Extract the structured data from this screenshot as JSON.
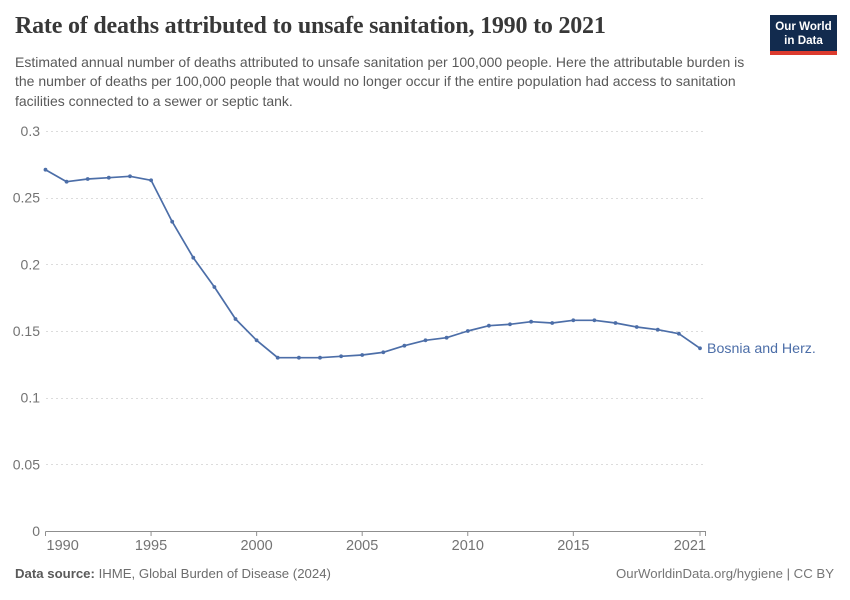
{
  "header": {
    "title": "Rate of deaths attributed to unsafe sanitation, 1990 to 2021",
    "subtitle": "Estimated annual number of deaths attributed to unsafe sanitation per 100,000 people. Here the attributable burden is the number of deaths per 100,000 people that would no longer occur if the entire population had access to sanitation facilities connected to a sewer or septic tank.",
    "logo": {
      "line1": "Our World",
      "line2": "in Data"
    }
  },
  "chart_data": {
    "type": "line",
    "title": "Rate of deaths attributed to unsafe sanitation, 1990 to 2021",
    "x": [
      1990,
      1991,
      1992,
      1993,
      1994,
      1995,
      1996,
      1997,
      1998,
      1999,
      2000,
      2001,
      2002,
      2003,
      2004,
      2005,
      2006,
      2007,
      2008,
      2009,
      2010,
      2011,
      2012,
      2013,
      2014,
      2015,
      2016,
      2017,
      2018,
      2019,
      2020,
      2021
    ],
    "series": [
      {
        "name": "Bosnia and Herz.",
        "values": [
          0.271,
          0.262,
          0.264,
          0.265,
          0.266,
          0.263,
          0.232,
          0.205,
          0.183,
          0.159,
          0.143,
          0.13,
          0.13,
          0.13,
          0.131,
          0.132,
          0.134,
          0.139,
          0.143,
          0.145,
          0.15,
          0.154,
          0.155,
          0.157,
          0.156,
          0.158,
          0.158,
          0.156,
          0.153,
          0.151,
          0.148,
          0.137
        ],
        "color": "#4c6ea8"
      }
    ],
    "xlabel": "",
    "ylabel": "",
    "xlim": [
      1990,
      2021
    ],
    "ylim": [
      0,
      0.3
    ],
    "x_ticks": [
      1990,
      1995,
      2000,
      2005,
      2010,
      2015,
      2021
    ],
    "y_ticks": [
      0,
      0.05,
      0.1,
      0.15,
      0.2,
      0.25,
      0.3
    ],
    "y_tick_labels": [
      "0",
      "0.05",
      "0.1",
      "0.15",
      "0.2",
      "0.25",
      "0.3"
    ],
    "grid": "horizontal-dashed",
    "legend_position": "end-of-line-label",
    "end_label": "Bosnia and Herz."
  },
  "footer": {
    "datasource_label": "Data source:",
    "datasource_value": "IHME, Global Burden of Disease (2024)",
    "link": "OurWorldinData.org/hygiene | CC BY"
  },
  "colors": {
    "line": "#4c6ea8",
    "grid": "#dcdcdc",
    "axis": "#8f8f8f",
    "tick_text": "#737373"
  }
}
